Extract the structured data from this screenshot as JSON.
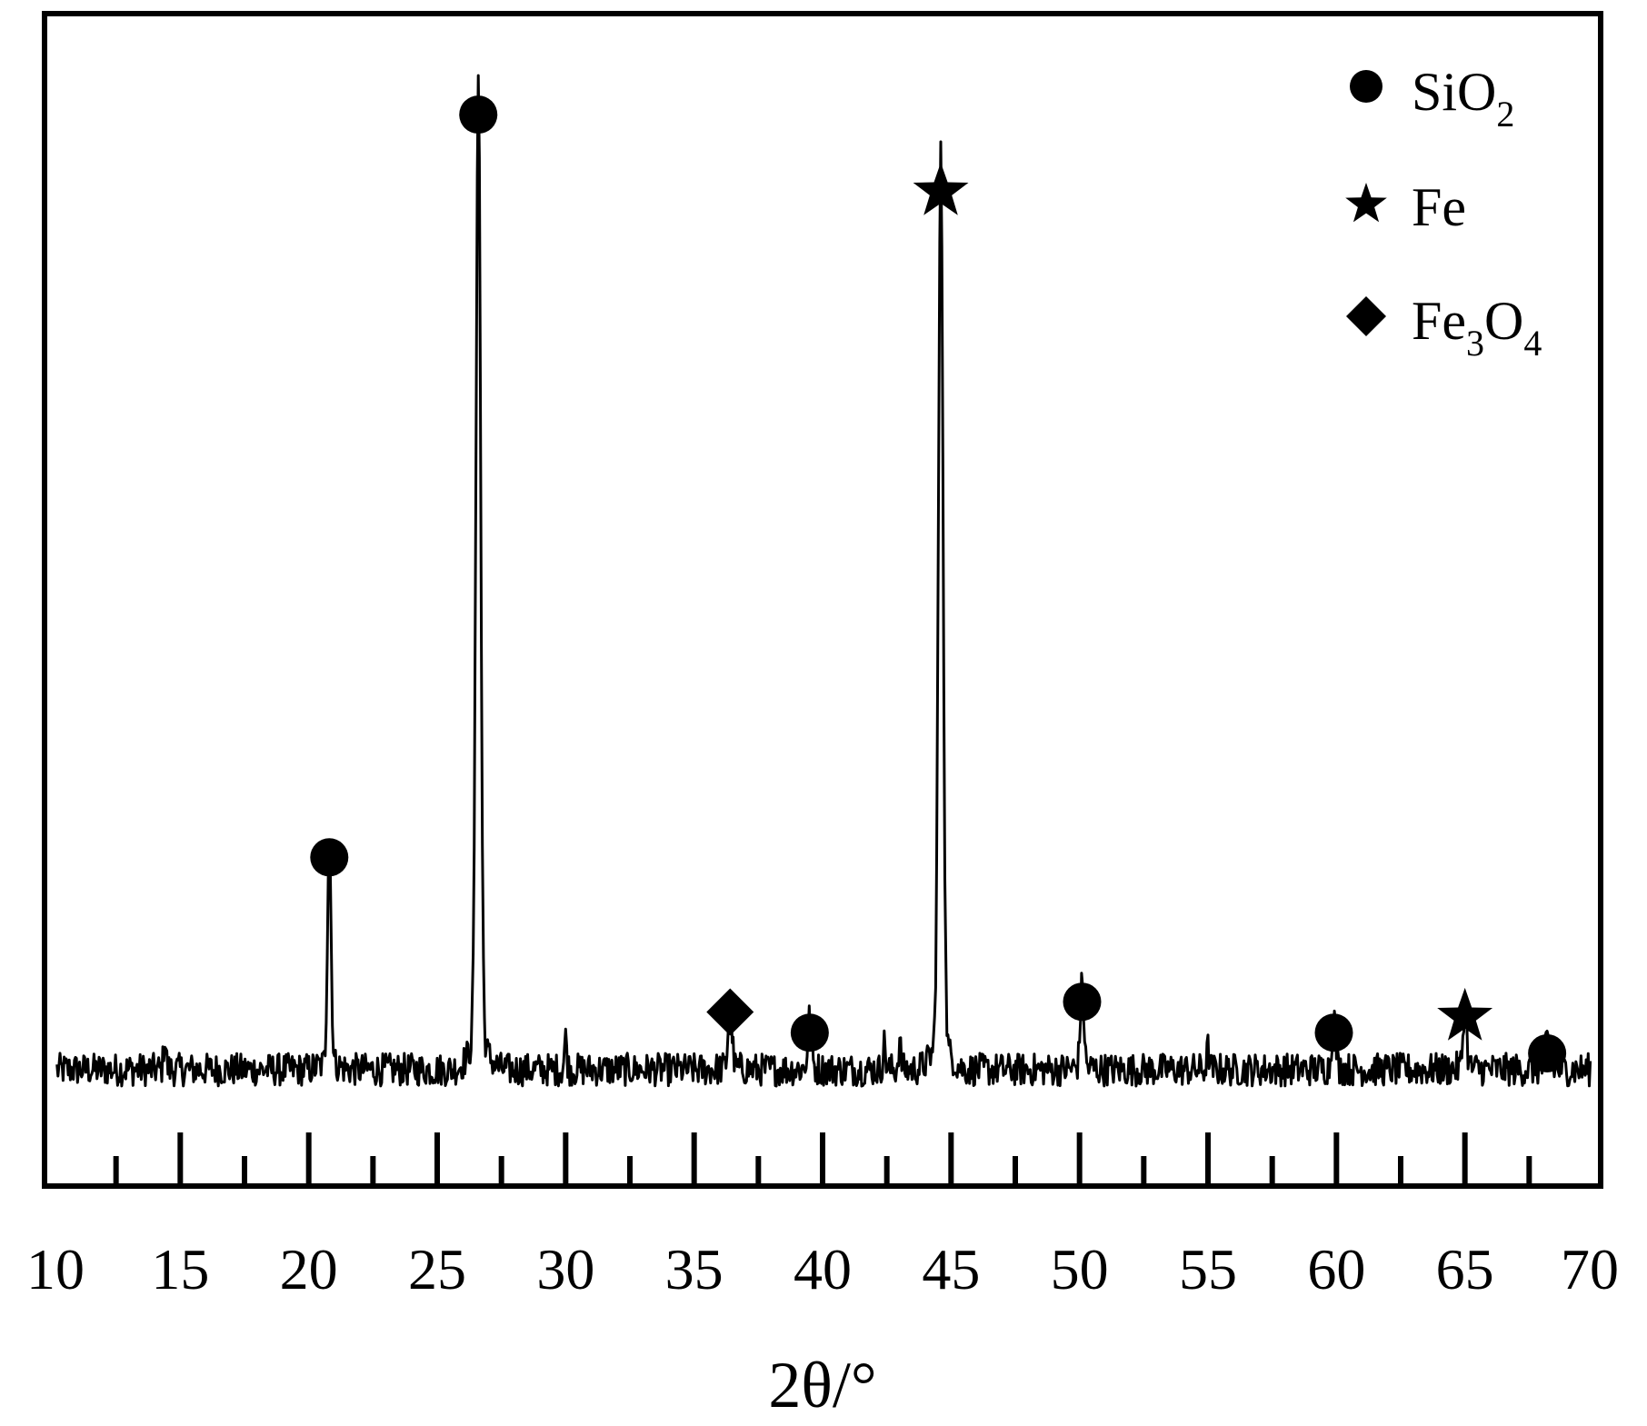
{
  "chart_data": {
    "type": "line",
    "title": "",
    "xlabel": "2θ/°",
    "ylabel": "",
    "xlim": [
      10,
      70
    ],
    "x_ticks": [
      10,
      15,
      20,
      25,
      30,
      35,
      40,
      45,
      50,
      55,
      60,
      65,
      70
    ],
    "x_tick_labels": [
      "10",
      "15",
      "20",
      "25",
      "30",
      "35",
      "40",
      "45",
      "50",
      "55",
      "60",
      "65",
      "70"
    ],
    "x_minor_ticks": [
      12.5,
      17.5,
      22.5,
      27.5,
      32.5,
      37.5,
      42.5,
      47.5,
      52.5,
      57.5,
      62.5,
      67.5
    ],
    "y_axis_labels_visible": false,
    "ylim": [
      0,
      100
    ],
    "grid": false,
    "legend_position": "top-right",
    "legend": [
      {
        "symbol": "circle",
        "base": "SiO",
        "sub": "2"
      },
      {
        "symbol": "star",
        "base": "Fe",
        "sub": ""
      },
      {
        "symbol": "diamond",
        "base": "Fe",
        "sub": "3",
        "base2": "O",
        "sub2": "4"
      }
    ],
    "baseline_intensity": 6,
    "peaks": [
      {
        "x": 20.8,
        "intensity": 22,
        "phase": "SiO2",
        "symbol": "circle"
      },
      {
        "x": 26.6,
        "intensity": 94,
        "phase": "SiO2",
        "symbol": "circle"
      },
      {
        "x": 36.4,
        "intensity": 7,
        "phase": "Fe3O4",
        "symbol": "diamond"
      },
      {
        "x": 39.5,
        "intensity": 5,
        "phase": "SiO2",
        "symbol": "circle"
      },
      {
        "x": 44.6,
        "intensity": 86,
        "phase": "Fe",
        "symbol": "star"
      },
      {
        "x": 50.1,
        "intensity": 8,
        "phase": "SiO2",
        "symbol": "circle"
      },
      {
        "x": 59.9,
        "intensity": 5,
        "phase": "SiO2",
        "symbol": "circle"
      },
      {
        "x": 65.0,
        "intensity": 6,
        "phase": "Fe",
        "symbol": "star"
      },
      {
        "x": 68.2,
        "intensity": 3,
        "phase": "SiO2",
        "symbol": "circle"
      }
    ],
    "minor_peaks": [
      {
        "x": 14.4,
        "intensity": 3
      },
      {
        "x": 30.0,
        "intensity": 3
      },
      {
        "x": 42.4,
        "intensity": 2.5
      },
      {
        "x": 43.0,
        "intensity": 2.5
      },
      {
        "x": 55.0,
        "intensity": 2
      }
    ]
  }
}
